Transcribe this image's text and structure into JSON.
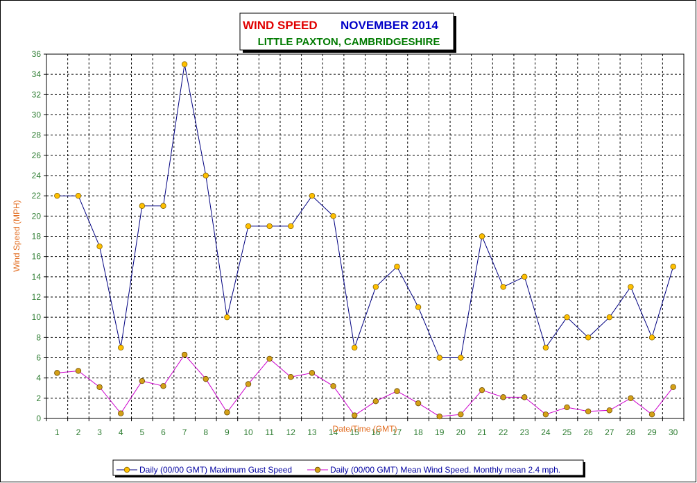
{
  "chart_data": {
    "type": "line",
    "title_parts": [
      "WIND SPEED",
      "NOVEMBER 2014"
    ],
    "subtitle": "LITTLE PAXTON, CAMBRIDGESHIRE",
    "xlabel": "Date/Time (GMT)",
    "ylabel": "Wind Speed (MPH)",
    "ylim": [
      0,
      36
    ],
    "ytick_step": 2,
    "grid": true,
    "legend_position": "bottom",
    "categories": [
      "1",
      "2",
      "3",
      "4",
      "5",
      "6",
      "7",
      "8",
      "9",
      "10",
      "11",
      "12",
      "13",
      "14",
      "15",
      "16",
      "17",
      "18",
      "19",
      "20",
      "21",
      "22",
      "23",
      "24",
      "25",
      "26",
      "27",
      "28",
      "29",
      "30"
    ],
    "series": [
      {
        "name": "Daily (00/00 GMT) Maximum Gust Speed",
        "color": "#000080",
        "marker_color": "#ffc000",
        "values": [
          22,
          22,
          17,
          7,
          21,
          21,
          35,
          24,
          10,
          19,
          19,
          19,
          22,
          20,
          7,
          13,
          15,
          11,
          6,
          6,
          18,
          13,
          14,
          7,
          10,
          8,
          10,
          13,
          8,
          15
        ]
      },
      {
        "name": "Daily (00/00 GMT) Mean Wind Speed. Monthly mean 2.4 mph.",
        "color": "#cc00cc",
        "marker_color": "#d4a017",
        "values": [
          4.5,
          4.7,
          3.1,
          0.5,
          3.7,
          3.2,
          6.3,
          3.9,
          0.6,
          3.4,
          5.9,
          4.1,
          4.5,
          3.2,
          0.3,
          1.7,
          2.7,
          1.5,
          0.2,
          0.4,
          2.8,
          2.1,
          2.1,
          0.4,
          1.1,
          0.7,
          0.8,
          2.0,
          0.4,
          3.1
        ]
      }
    ]
  }
}
